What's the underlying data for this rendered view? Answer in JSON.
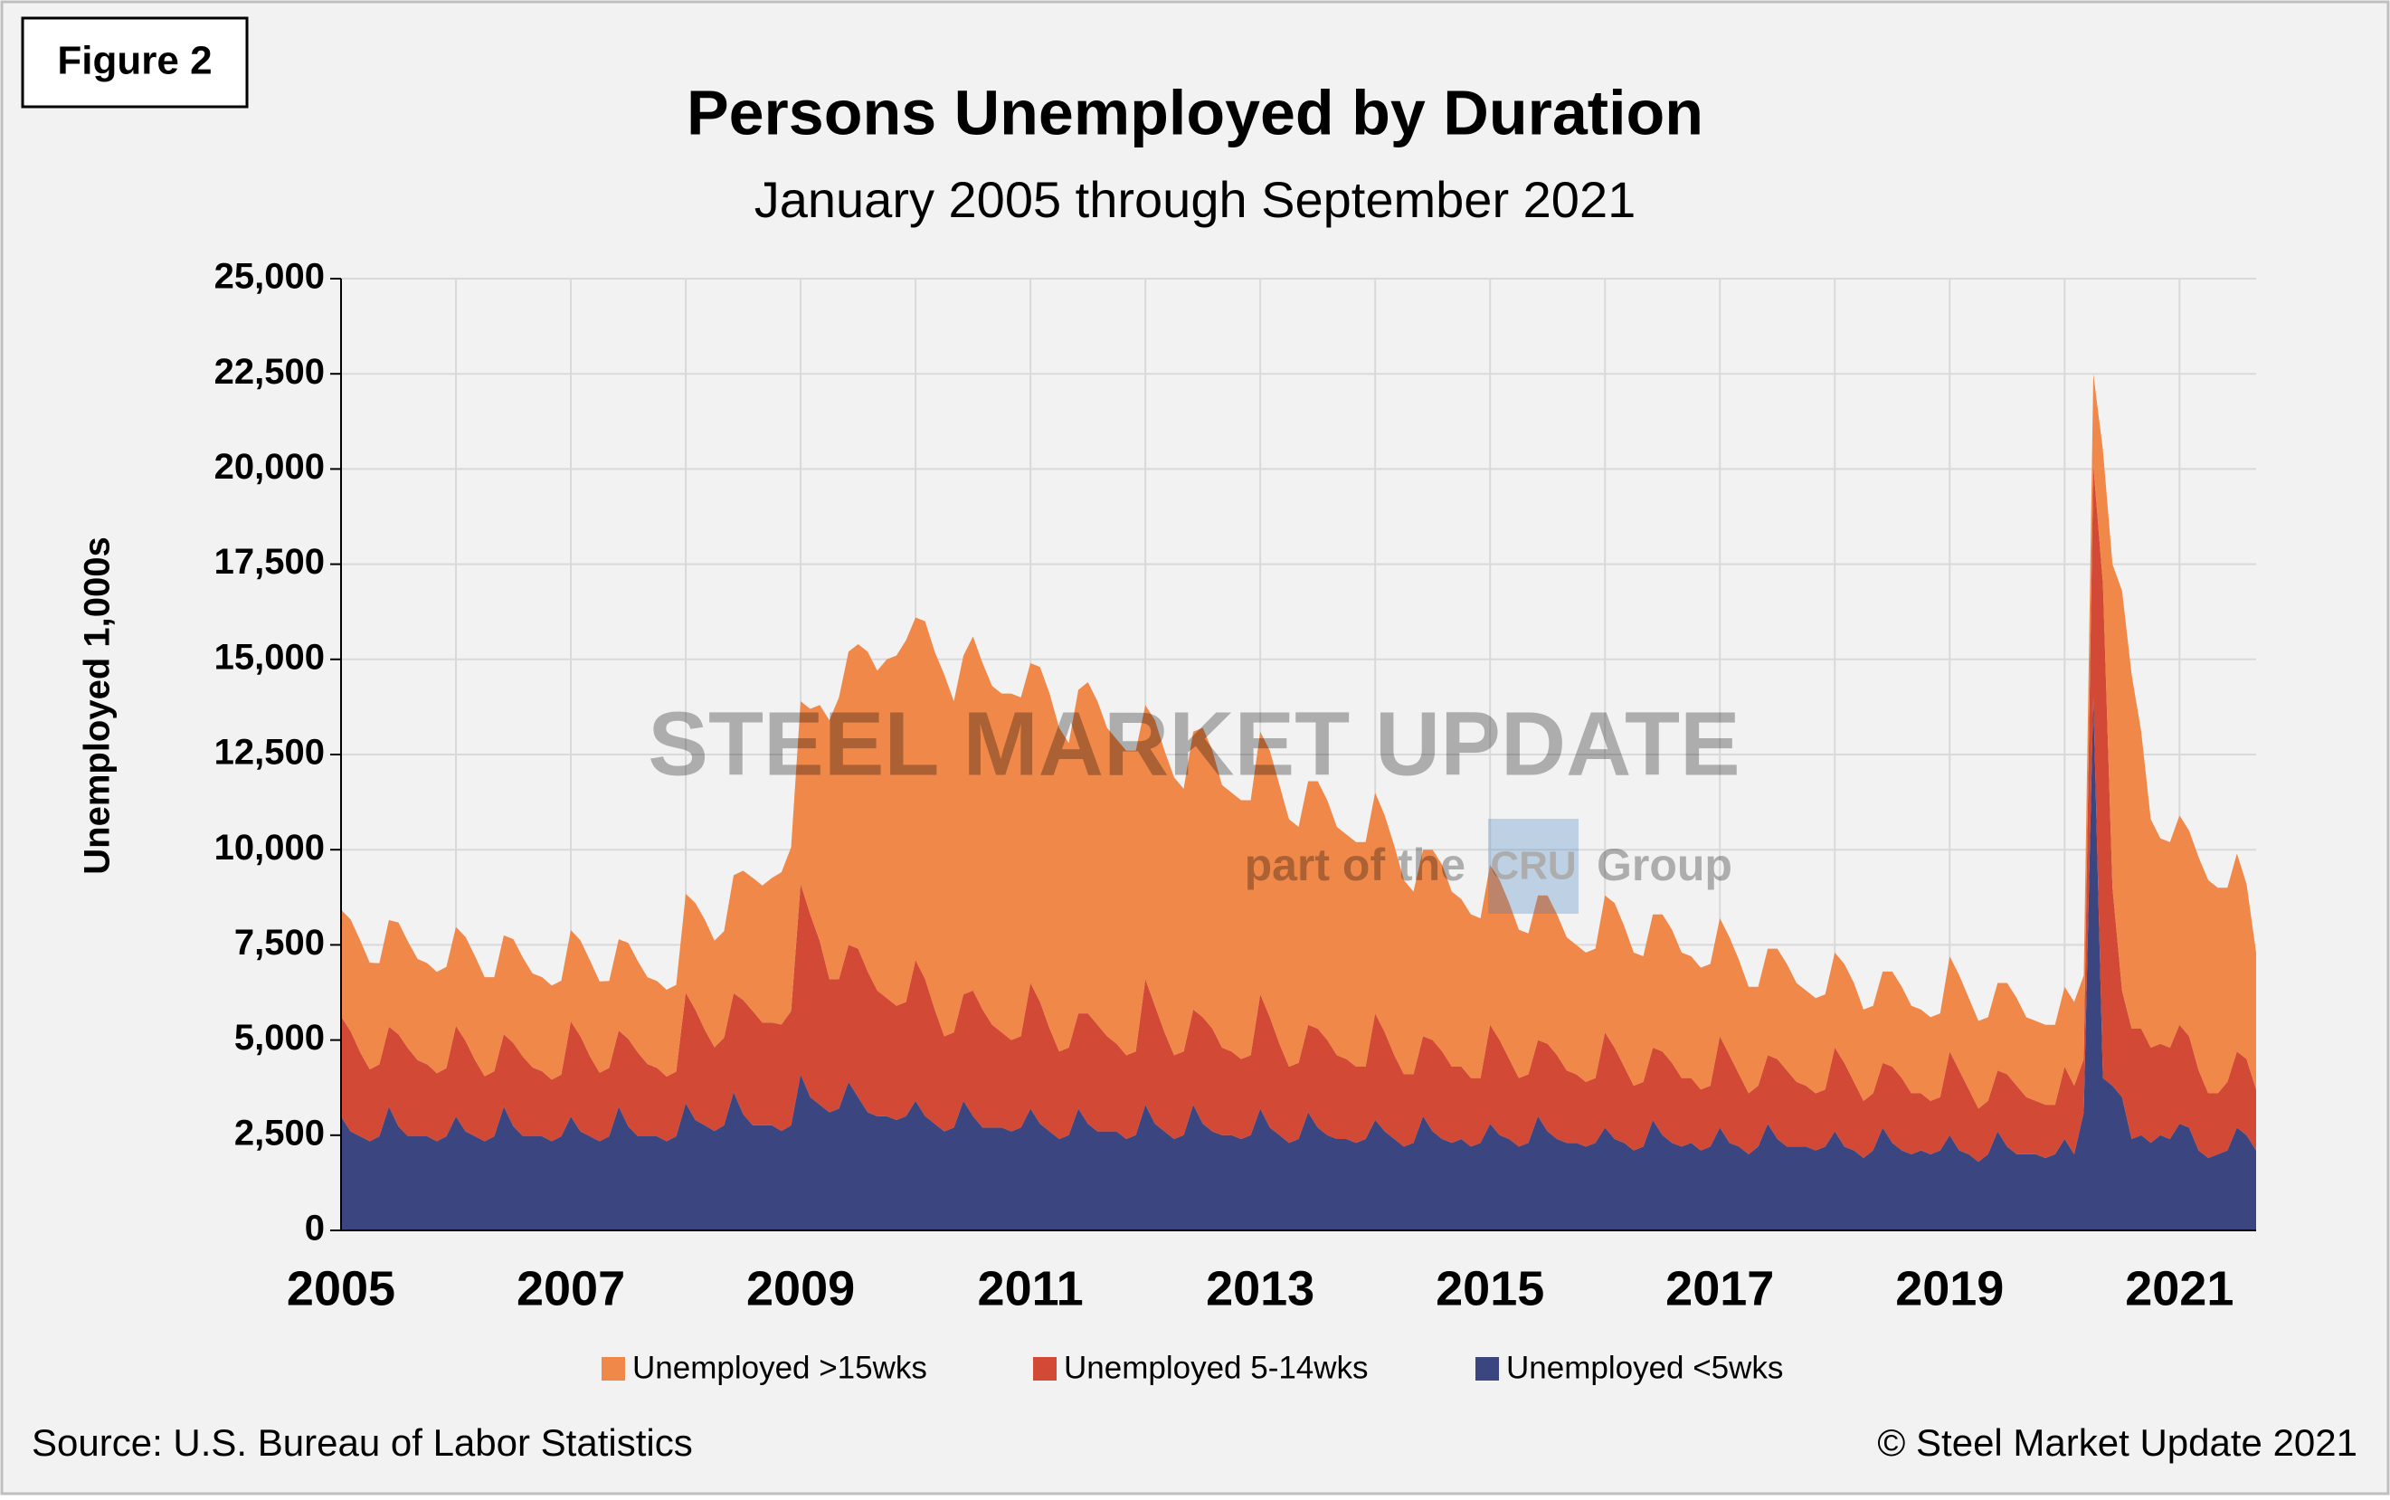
{
  "figure_label": "Figure 2",
  "source": "Source: U.S. Bureau of Labor Statistics",
  "copyright": "© Steel Market Update 2021",
  "watermark": {
    "brand": "STEEL MARKET UPDATE",
    "tagline_start": "part of the",
    "logo": "CRU",
    "tagline_end": "Group"
  },
  "chart_data": {
    "type": "stacked-area",
    "title": "Persons Unemployed by Duration",
    "subtitle": "January 2005 through September 2021",
    "y_label": "Unemployed 1,000s",
    "ylim": [
      0,
      25000
    ],
    "yticks": [
      0,
      {
        "value": 2500,
        "label": "2,500"
      },
      {
        "value": 5000,
        "label": "5,000"
      },
      {
        "value": 7500,
        "label": "7,500"
      },
      {
        "value": 10000,
        "label": "10,000"
      },
      {
        "value": 12500,
        "label": "12,500"
      },
      {
        "value": 15000,
        "label": "15,000"
      },
      {
        "value": 17500,
        "label": "17,500"
      },
      {
        "value": 20000,
        "label": "20,000"
      },
      {
        "value": 22500,
        "label": "22,500"
      },
      {
        "value": 25000,
        "label": "25,000"
      }
    ],
    "grid": true,
    "legend": "bottom",
    "categories": [
      "2005",
      null,
      null,
      null,
      null,
      null,
      null,
      null,
      null,
      null,
      null,
      null,
      null,
      null,
      null,
      null,
      null,
      null,
      null,
      null,
      null,
      null,
      null,
      null,
      "2007",
      null,
      null,
      null,
      null,
      null,
      null,
      null,
      null,
      null,
      null,
      null,
      null,
      null,
      null,
      null,
      null,
      null,
      null,
      null,
      null,
      null,
      null,
      null,
      "2009",
      null,
      null,
      null,
      null,
      null,
      null,
      null,
      null,
      null,
      null,
      null,
      null,
      null,
      null,
      null,
      null,
      null,
      null,
      null,
      null,
      null,
      null,
      null,
      "2011",
      null,
      null,
      null,
      null,
      null,
      null,
      null,
      null,
      null,
      null,
      null,
      null,
      null,
      null,
      null,
      null,
      null,
      null,
      null,
      null,
      null,
      null,
      null,
      "2013",
      null,
      null,
      null,
      null,
      null,
      null,
      null,
      null,
      null,
      null,
      null,
      null,
      null,
      null,
      null,
      null,
      null,
      null,
      null,
      null,
      null,
      null,
      null,
      "2015",
      null,
      null,
      null,
      null,
      null,
      null,
      null,
      null,
      null,
      null,
      null,
      null,
      null,
      null,
      null,
      null,
      null,
      null,
      null,
      null,
      null,
      null,
      null,
      "2017",
      null,
      null,
      null,
      null,
      null,
      null,
      null,
      null,
      null,
      null,
      null,
      null,
      null,
      null,
      null,
      null,
      null,
      null,
      null,
      null,
      null,
      null,
      null,
      "2019",
      null,
      null,
      null,
      null,
      null,
      null,
      null,
      null,
      null,
      null,
      null,
      null,
      null,
      null,
      null,
      null,
      null,
      null,
      null,
      null,
      null,
      null,
      null,
      "2021",
      null,
      null,
      null,
      null,
      null,
      null,
      null,
      null
    ],
    "series": [
      {
        "name": "Unemployed >15wks",
        "color": "#f0884a",
        "values": [
          2800,
          2940,
          2940,
          2800,
          2660,
          2800,
          2940,
          2800,
          2660,
          2660,
          2660,
          2660,
          2600,
          2730,
          2730,
          2600,
          2470,
          2600,
          2730,
          2600,
          2470,
          2470,
          2470,
          2470,
          2400,
          2520,
          2520,
          2400,
          2280,
          2400,
          2520,
          2400,
          2280,
          2280,
          2280,
          2280,
          2600,
          2800,
          2900,
          2800,
          2800,
          3100,
          3400,
          3500,
          3600,
          3800,
          4000,
          4300,
          4800,
          5400,
          6200,
          6800,
          7400,
          7700,
          8000,
          8400,
          8400,
          8900,
          9200,
          9500,
          9000,
          9400,
          9400,
          9500,
          8700,
          8900,
          9300,
          9100,
          8900,
          8900,
          9100,
          8900,
          8400,
          8800,
          8800,
          8500,
          8000,
          8500,
          8700,
          8500,
          8100,
          8000,
          8000,
          7900,
          7200,
          7500,
          7400,
          7300,
          6900,
          7300,
          7600,
          7300,
          6900,
          6800,
          6800,
          6700,
          6900,
          7000,
          6800,
          6500,
          6200,
          6400,
          6500,
          6300,
          6000,
          5900,
          5900,
          5900,
          5800,
          5700,
          5500,
          5100,
          4800,
          4900,
          5000,
          4900,
          4600,
          4400,
          4300,
          4200,
          4200,
          4200,
          4100,
          3900,
          3700,
          3800,
          3900,
          3700,
          3500,
          3400,
          3400,
          3400,
          3600,
          3800,
          3700,
          3500,
          3300,
          3500,
          3600,
          3500,
          3300,
          3200,
          3200,
          3200,
          3100,
          3100,
          3000,
          2800,
          2600,
          2800,
          2900,
          2800,
          2600,
          2500,
          2500,
          2500,
          2500,
          2600,
          2600,
          2400,
          2300,
          2400,
          2500,
          2400,
          2300,
          2200,
          2200,
          2200,
          2500,
          2500,
          2400,
          2300,
          2200,
          2300,
          2400,
          2300,
          2100,
          2100,
          2100,
          2100,
          2100,
          2200,
          2200,
          2400,
          3500,
          8500,
          10500,
          9300,
          7800,
          6000,
          5400,
          5400,
          5500,
          5400,
          5600,
          5600,
          5400,
          5100,
          5200,
          4600,
          3600
        ]
      },
      {
        "name": "Unemployed 5-14wks",
        "color": "#d24a35",
        "values": [
          2630,
          2630,
          2210,
          1890,
          1890,
          2100,
          2420,
          2310,
          2000,
          1890,
          1790,
          1790,
          2380,
          2380,
          2000,
          1710,
          1710,
          1900,
          2190,
          2090,
          1810,
          1710,
          1620,
          1620,
          2500,
          2500,
          2100,
          1800,
          1800,
          2000,
          2300,
          2200,
          1900,
          1800,
          1700,
          1700,
          2900,
          2900,
          2500,
          2200,
          2300,
          2600,
          3000,
          3000,
          2700,
          2700,
          2800,
          3000,
          5000,
          4800,
          4300,
          3500,
          3400,
          3600,
          3900,
          3700,
          3300,
          3100,
          3000,
          3000,
          3700,
          3600,
          3000,
          2500,
          2500,
          2800,
          3300,
          3100,
          2700,
          2500,
          2400,
          2400,
          3300,
          3200,
          2700,
          2300,
          2300,
          2500,
          2900,
          2800,
          2500,
          2300,
          2200,
          2200,
          3300,
          3100,
          2600,
          2200,
          2200,
          2500,
          2800,
          2700,
          2300,
          2200,
          2100,
          2100,
          3000,
          2900,
          2400,
          2000,
          2000,
          2300,
          2600,
          2500,
          2200,
          2100,
          2000,
          1900,
          2800,
          2600,
          2200,
          1900,
          1800,
          2100,
          2400,
          2300,
          2000,
          1900,
          1800,
          1700,
          2600,
          2500,
          2100,
          1800,
          1800,
          2000,
          2300,
          2200,
          1900,
          1800,
          1700,
          1700,
          2500,
          2400,
          2000,
          1700,
          1700,
          1900,
          2200,
          2100,
          1800,
          1700,
          1600,
          1600,
          2400,
          2300,
          1900,
          1600,
          1600,
          1800,
          2100,
          2000,
          1700,
          1600,
          1500,
          1500,
          2200,
          2200,
          1800,
          1500,
          1500,
          1700,
          2000,
          1900,
          1600,
          1500,
          1400,
          1400,
          2200,
          2100,
          1700,
          1400,
          1400,
          1600,
          1900,
          1800,
          1500,
          1400,
          1400,
          1300,
          1900,
          1800,
          1400,
          6100,
          13000,
          5200,
          2800,
          2900,
          2800,
          2500,
          2400,
          2400,
          2600,
          2400,
          2100,
          1700,
          1600,
          1800,
          2000,
          2000,
          1600
        ]
      },
      {
        "name": "Unemployed <5wks",
        "color": "#3b4681",
        "values": [
          2990,
          2600,
          2470,
          2340,
          2470,
          3250,
          2730,
          2470,
          2470,
          2470,
          2340,
          2470,
          2990,
          2600,
          2470,
          2340,
          2470,
          3250,
          2730,
          2470,
          2470,
          2470,
          2340,
          2470,
          2990,
          2600,
          2470,
          2340,
          2470,
          3250,
          2730,
          2470,
          2470,
          2470,
          2340,
          2470,
          3340,
          2900,
          2760,
          2610,
          2760,
          3630,
          3050,
          2760,
          2760,
          2760,
          2610,
          2760,
          4100,
          3500,
          3300,
          3100,
          3200,
          3900,
          3500,
          3100,
          3000,
          3000,
          2900,
          3000,
          3400,
          3000,
          2800,
          2600,
          2700,
          3400,
          3000,
          2700,
          2700,
          2700,
          2600,
          2700,
          3200,
          2800,
          2600,
          2400,
          2500,
          3200,
          2800,
          2600,
          2600,
          2600,
          2400,
          2500,
          3300,
          2800,
          2600,
          2400,
          2500,
          3300,
          2800,
          2600,
          2500,
          2500,
          2400,
          2500,
          3200,
          2700,
          2500,
          2300,
          2400,
          3100,
          2700,
          2500,
          2400,
          2400,
          2300,
          2400,
          2900,
          2600,
          2400,
          2200,
          2300,
          3000,
          2600,
          2400,
          2300,
          2400,
          2200,
          2300,
          2800,
          2500,
          2400,
          2200,
          2300,
          3000,
          2600,
          2400,
          2300,
          2300,
          2200,
          2300,
          2700,
          2400,
          2300,
          2100,
          2200,
          2900,
          2500,
          2300,
          2200,
          2300,
          2100,
          2200,
          2700,
          2300,
          2200,
          2000,
          2200,
          2800,
          2400,
          2200,
          2200,
          2200,
          2100,
          2200,
          2600,
          2200,
          2100,
          1900,
          2100,
          2700,
          2300,
          2100,
          2000,
          2100,
          2000,
          2100,
          2500,
          2100,
          2000,
          1800,
          2000,
          2600,
          2200,
          2000,
          2000,
          2000,
          1900,
          2000,
          2400,
          2000,
          3100,
          14000,
          4000,
          3800,
          3500,
          2400,
          2500,
          2300,
          2500,
          2400,
          2800,
          2700,
          2100,
          1900,
          2000,
          2100,
          2700,
          2500,
          2100
        ]
      }
    ]
  }
}
